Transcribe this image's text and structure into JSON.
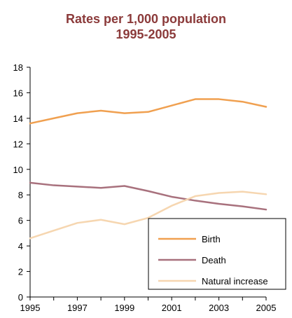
{
  "chart_data": {
    "type": "line",
    "title": "Rates per 1,000 population",
    "subtitle": "1995-2005",
    "x": [
      1995,
      1996,
      1997,
      1998,
      1999,
      2000,
      2001,
      2002,
      2003,
      2004,
      2005
    ],
    "xticks": [
      "1995",
      "1997",
      "1999",
      "2001",
      "2003",
      "2005"
    ],
    "ylim": [
      0,
      18
    ],
    "yticks": [
      "0",
      "2",
      "4",
      "6",
      "8",
      "10",
      "12",
      "14",
      "16",
      "18"
    ],
    "series": [
      {
        "name": "Birth",
        "color": "#f0a050",
        "values": [
          13.6,
          14.0,
          14.4,
          14.6,
          14.4,
          14.5,
          15.0,
          15.5,
          15.5,
          15.3,
          14.9
        ]
      },
      {
        "name": "Death",
        "color": "#a8717d",
        "values": [
          8.95,
          8.75,
          8.65,
          8.55,
          8.7,
          8.3,
          7.85,
          7.55,
          7.3,
          7.1,
          6.85
        ]
      },
      {
        "name": "Natural increase",
        "color": "#f6d6b0",
        "values": [
          4.6,
          5.2,
          5.8,
          6.05,
          5.7,
          6.2,
          7.15,
          7.9,
          8.15,
          8.25,
          8.05
        ]
      }
    ],
    "grid": false,
    "legend_position": "bottom-right"
  }
}
